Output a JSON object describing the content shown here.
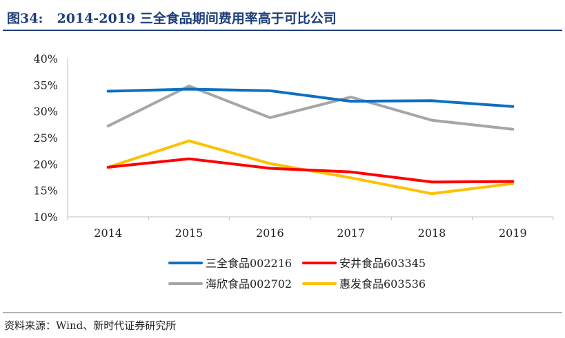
{
  "figure": {
    "label": "图34:",
    "title": "2014-2019 三全食品期间费用率高于可比公司"
  },
  "source": "资料来源：Wind、新时代证券研究所",
  "chart_data": {
    "type": "line",
    "title": "",
    "xlabel": "",
    "ylabel": "",
    "x": [
      "2014",
      "2015",
      "2016",
      "2017",
      "2018",
      "2019"
    ],
    "ylim": [
      10,
      40
    ],
    "yticks": [
      "10%",
      "15%",
      "20%",
      "25%",
      "30%",
      "35%",
      "40%"
    ],
    "ytick_values": [
      10,
      15,
      20,
      25,
      30,
      35,
      40
    ],
    "grid": false,
    "legend_position": "bottom",
    "series": [
      {
        "name": "三全食品002216",
        "color": "#0e6fc1",
        "values": [
          33.8,
          34.2,
          33.9,
          31.9,
          32.0,
          30.9
        ]
      },
      {
        "name": "安井食品603345",
        "color": "#ff0000",
        "values": [
          19.4,
          21.0,
          19.2,
          18.5,
          16.6,
          16.7
        ]
      },
      {
        "name": "海欣食品002702",
        "color": "#a6a6a6",
        "values": [
          27.2,
          34.8,
          28.8,
          32.7,
          28.3,
          26.6
        ]
      },
      {
        "name": "惠发食品603536",
        "color": "#ffc000",
        "values": [
          19.4,
          24.4,
          20.1,
          17.4,
          14.4,
          16.3
        ]
      }
    ]
  }
}
